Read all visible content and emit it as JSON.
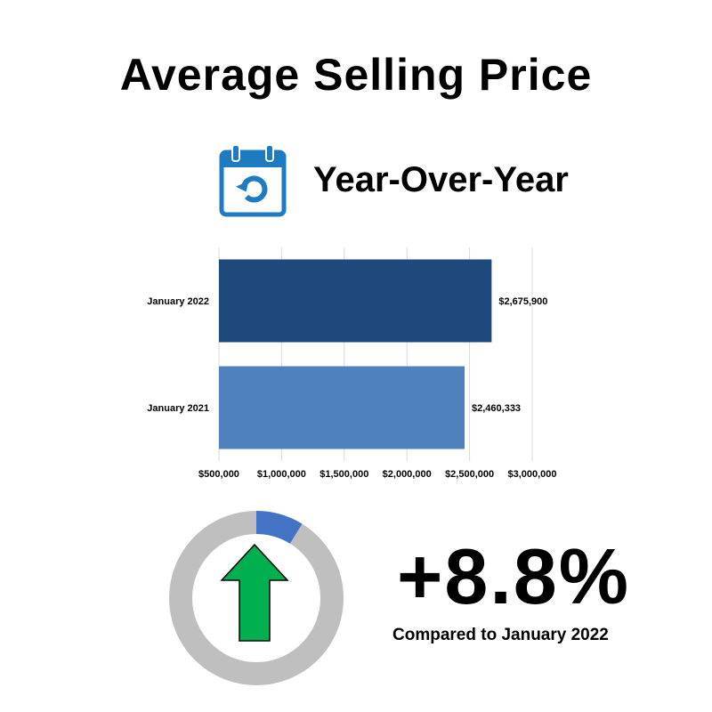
{
  "header": {
    "title": "Average Selling Price",
    "subtitle": "Year-Over-Year",
    "icon": "calendar-refresh-icon"
  },
  "colors": {
    "bar_2022": "#1F497D",
    "bar_2021": "#4F81BD",
    "donut_track": "#BFBFBF",
    "donut_fill": "#4472C4",
    "arrow_fill": "#00B050",
    "icon_blue": "#1F7BC1"
  },
  "chart_data": {
    "type": "bar",
    "orientation": "horizontal",
    "categories": [
      "January 2022",
      "January 2021"
    ],
    "values": [
      2675900,
      2460333
    ],
    "data_labels": [
      "$2,675,900",
      "$2,460,333"
    ],
    "x_ticks": [
      "$500,000",
      "$1,000,000",
      "$1,500,000",
      "$2,000,000",
      "$2,500,000",
      "$3,000,000"
    ],
    "x_tick_values": [
      500000,
      1000000,
      1500000,
      2000000,
      2500000,
      3000000
    ],
    "xlim": [
      500000,
      3000000
    ],
    "grid": true
  },
  "summary": {
    "change": "+8.8%",
    "change_fraction": 0.088,
    "direction": "up",
    "caption": "Compared to January 2022",
    "indicator_icon": "up-arrow-icon"
  }
}
